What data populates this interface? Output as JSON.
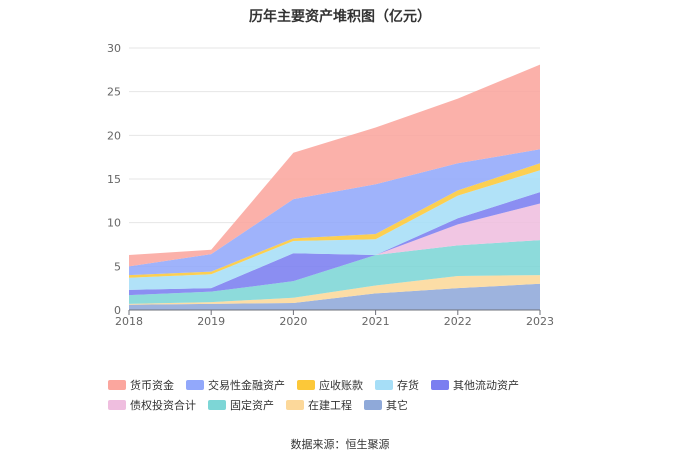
{
  "chart_data": {
    "type": "area",
    "stacked": true,
    "title": "历年主要资产堆积图（亿元）",
    "xlabel": "",
    "ylabel": "",
    "x": [
      "2018",
      "2019",
      "2020",
      "2021",
      "2022",
      "2023"
    ],
    "ylim": [
      0,
      30
    ],
    "yticks": [
      0,
      5,
      10,
      15,
      20,
      25,
      30
    ],
    "grid": true,
    "legend_position": "bottom",
    "series": [
      {
        "name": "其它",
        "color": "#8FA9D9",
        "values": [
          0.6,
          0.7,
          0.8,
          1.9,
          2.5,
          3.0
        ]
      },
      {
        "name": "在建工程",
        "color": "#FCD89A",
        "values": [
          0.1,
          0.2,
          0.6,
          0.9,
          1.4,
          1.0
        ]
      },
      {
        "name": "固定资产",
        "color": "#7DD6D6",
        "values": [
          1.0,
          1.2,
          1.9,
          3.5,
          3.5,
          4.0
        ]
      },
      {
        "name": "债权投资合计",
        "color": "#EFBEDF",
        "values": [
          0.0,
          0.0,
          0.0,
          0.0,
          2.4,
          4.2
        ]
      },
      {
        "name": "其他流动资产",
        "color": "#7B7EF0",
        "values": [
          0.6,
          0.4,
          3.2,
          0.0,
          0.7,
          1.3
        ]
      },
      {
        "name": "存货",
        "color": "#A6DEF7",
        "values": [
          1.4,
          1.6,
          1.4,
          1.8,
          2.6,
          2.5
        ]
      },
      {
        "name": "应收账款",
        "color": "#FCC839",
        "values": [
          0.3,
          0.3,
          0.3,
          0.6,
          0.6,
          0.8
        ]
      },
      {
        "name": "交易性金融资产",
        "color": "#92A8FB",
        "values": [
          1.0,
          2.0,
          4.5,
          5.7,
          3.1,
          1.6
        ]
      },
      {
        "name": "货币资金",
        "color": "#FBA69E",
        "values": [
          1.3,
          0.5,
          5.3,
          6.5,
          7.4,
          9.7
        ]
      }
    ],
    "legend_order": [
      "货币资金",
      "交易性金融资产",
      "应收账款",
      "存货",
      "其他流动资产",
      "债权投资合计",
      "固定资产",
      "在建工程",
      "其它"
    ]
  },
  "source": "数据来源：恒生聚源"
}
